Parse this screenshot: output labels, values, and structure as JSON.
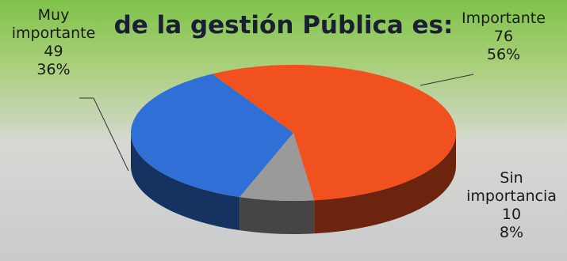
{
  "chart_data": {
    "type": "pie3d",
    "title": "de la gestión Pública es:",
    "categories": [
      "Muy importante",
      "Importante",
      "Sin importancia"
    ],
    "values": [
      49,
      76,
      10
    ],
    "percent_labels": [
      "36%",
      "56%",
      "8%"
    ],
    "colors": [
      "#2f6fd6",
      "#f0511e",
      "#9a9a9a"
    ]
  }
}
